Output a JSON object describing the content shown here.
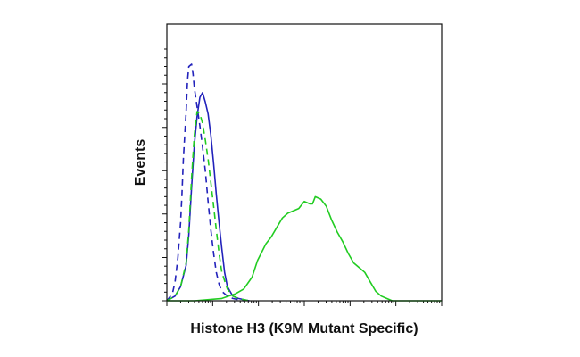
{
  "chart_data": {
    "type": "line",
    "title": "",
    "xlabel": "Histone H3 (K9M Mutant Specific)",
    "ylabel": "Events",
    "xlim": [
      0,
      100
    ],
    "ylim": [
      0,
      100
    ],
    "x_scale": "log",
    "x_major_ticks": [
      0,
      16.67,
      33.33,
      50,
      66.67,
      83.33,
      100
    ],
    "y_major_ticks": [
      0,
      18.3,
      36.7,
      55,
      73.3,
      91.7
    ],
    "grid": false,
    "legend": "none",
    "series": [
      {
        "color": "#2222bb",
        "dash": true,
        "x": [
          0,
          2,
          3,
          4,
          5,
          5.5,
          6,
          7,
          7.5,
          8,
          9,
          9.5,
          10,
          11,
          12,
          13,
          14,
          15,
          16,
          17,
          18,
          19,
          20,
          22,
          24,
          28
        ],
        "y": [
          0,
          3,
          8,
          18,
          33,
          45,
          60,
          80,
          93,
          99,
          100,
          96,
          90,
          82,
          74,
          65,
          55,
          42,
          30,
          20,
          12,
          7,
          4,
          2,
          1,
          0
        ]
      },
      {
        "color": "#2222bb",
        "dash": false,
        "x": [
          0,
          3,
          5,
          7,
          8,
          9,
          10,
          11,
          12,
          13,
          14,
          15,
          16,
          17,
          18,
          19,
          20,
          21,
          22,
          24,
          26,
          30
        ],
        "y": [
          0,
          2,
          6,
          15,
          28,
          48,
          66,
          78,
          86,
          88,
          84,
          79,
          70,
          58,
          45,
          33,
          22,
          12,
          6,
          2,
          1,
          0
        ]
      },
      {
        "color": "#22cc22",
        "dash": true,
        "x": [
          0,
          3,
          5,
          7,
          8,
          9,
          10,
          11,
          12,
          13,
          14,
          15,
          16,
          17,
          18,
          19,
          20,
          22,
          24,
          26,
          30
        ],
        "y": [
          0,
          2,
          6,
          16,
          30,
          52,
          70,
          80,
          79,
          75,
          68,
          60,
          50,
          40,
          30,
          20,
          12,
          5,
          2,
          1,
          0
        ]
      },
      {
        "color": "#22cc22",
        "dash": false,
        "x": [
          0,
          10,
          20,
          25,
          28,
          31,
          33,
          36,
          38,
          40,
          42,
          44,
          46,
          48,
          50,
          52,
          53,
          54,
          56,
          58,
          60,
          62,
          64,
          66,
          68,
          70,
          72,
          74,
          76,
          78,
          80,
          82,
          86,
          90,
          100
        ],
        "y": [
          0,
          0,
          1,
          3,
          5,
          10,
          17,
          24,
          27,
          31,
          35,
          37,
          38,
          39,
          42,
          41,
          41,
          44,
          43,
          40,
          34,
          29,
          25,
          20,
          16,
          14,
          12,
          8,
          4,
          2,
          1,
          0,
          0,
          0,
          0
        ]
      }
    ]
  }
}
